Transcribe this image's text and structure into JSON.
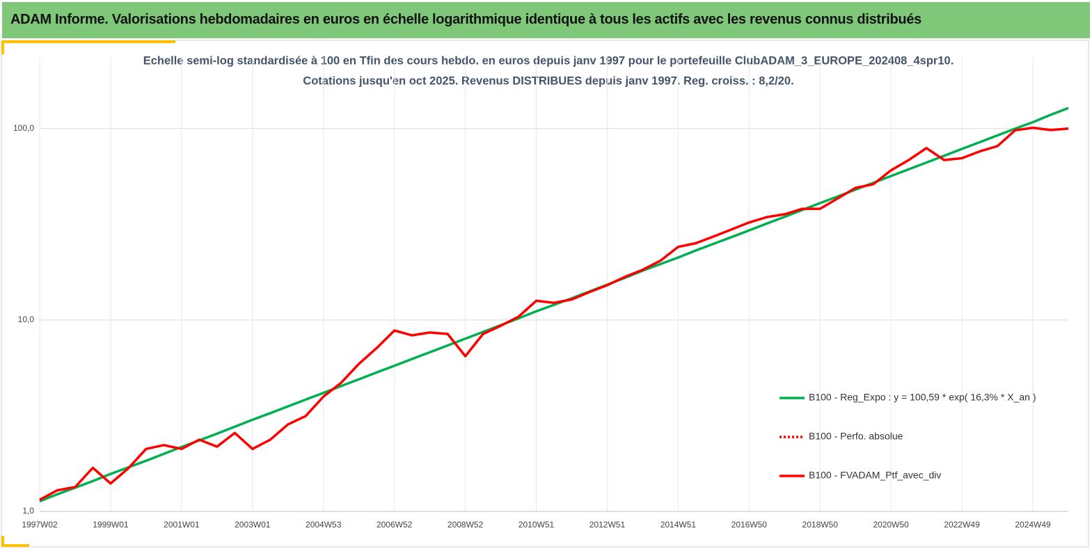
{
  "header": {
    "title": "ADAM Informe. Valorisations hebdomadaires en euros en échelle logarithmique identique à tous les actifs avec les revenus connus distribués"
  },
  "chart_data": {
    "type": "line",
    "title": "Echelle semi-log standardisée à 100 en Tfin des cours hebdo.  en euros depuis janv 1997 pour le portefeuille ClubADAM_3_EUROPE_202408_4spr10.",
    "subtitle": "Cotations  jusqu'en oct 2025. Revenus DISTRIBUES depuis janv 1997. Reg. croiss. : 8,2/20.",
    "log_scale": true,
    "grid": true,
    "legend": "lower right",
    "ylim": [
      1,
      200
    ],
    "yticks": [
      {
        "value": 1,
        "label": "1,0"
      },
      {
        "value": 10,
        "label": "10,0"
      },
      {
        "value": 100,
        "label": "100,0"
      }
    ],
    "categories": [
      "1997W02",
      null,
      null,
      null,
      "1999W01",
      null,
      null,
      null,
      "2001W01",
      null,
      null,
      null,
      "2003W01",
      null,
      null,
      null,
      "2004W53",
      null,
      null,
      null,
      "2006W52",
      null,
      null,
      null,
      "2008W52",
      null,
      null,
      null,
      "2010W51",
      null,
      null,
      null,
      "2012W51",
      null,
      null,
      null,
      "2014W51",
      null,
      null,
      null,
      "2016W50",
      null,
      null,
      null,
      "2018W50",
      null,
      null,
      null,
      "2020W50",
      null,
      null,
      null,
      "2022W49",
      null,
      null,
      null,
      "2024W49",
      null,
      null
    ],
    "series": [
      {
        "name": "B100 - Reg_Expo : y = 100,59 * exp( 16,3% *  X_an )",
        "color": "#00b050",
        "dash": "solid",
        "values": [
          1.13,
          1.23,
          1.33,
          1.44,
          1.57,
          1.7,
          1.84,
          2.0,
          2.17,
          2.35,
          2.55,
          2.77,
          3.01,
          3.26,
          3.54,
          3.84,
          4.16,
          4.52,
          4.9,
          5.32,
          5.77,
          6.26,
          6.79,
          7.36,
          7.99,
          8.67,
          9.4,
          10.2,
          11.1,
          12.0,
          13.0,
          14.1,
          15.3,
          16.6,
          18.1,
          19.6,
          21.2,
          23.1,
          25.0,
          27.1,
          29.4,
          31.9,
          34.6,
          37.6,
          40.8,
          44.2,
          48.0,
          52.1,
          56.5,
          61.3,
          66.5,
          72.1,
          78.3,
          84.9,
          92.1,
          99.9,
          108,
          118,
          128
        ]
      },
      {
        "name": "B100 - Perfo. absolue",
        "color": "#ff0000",
        "dash": "dotted",
        "values": [
          1.15,
          1.29,
          1.34,
          1.69,
          1.4,
          1.68,
          2.12,
          2.22,
          2.12,
          2.37,
          2.18,
          2.57,
          2.12,
          2.37,
          2.85,
          3.15,
          3.98,
          4.7,
          5.9,
          7.14,
          8.81,
          8.32,
          8.6,
          8.46,
          6.47,
          8.46,
          9.34,
          10.4,
          12.6,
          12.3,
          12.8,
          14.0,
          15.2,
          16.8,
          18.3,
          20.4,
          24.1,
          25.2,
          27.3,
          29.7,
          32.3,
          34.5,
          35.7,
          38.1,
          38.1,
          43.2,
          49.0,
          51.2,
          60.5,
          68.5,
          79.1,
          68.5,
          70.0,
          76.0,
          81.0,
          98,
          101,
          98.3,
          100
        ]
      },
      {
        "name": "B100 - FVADAM_Ptf_avec_div",
        "color": "#ff0000",
        "dash": "solid",
        "values": [
          1.15,
          1.29,
          1.34,
          1.69,
          1.4,
          1.68,
          2.12,
          2.22,
          2.12,
          2.37,
          2.18,
          2.57,
          2.12,
          2.37,
          2.85,
          3.15,
          3.98,
          4.7,
          5.9,
          7.14,
          8.81,
          8.32,
          8.6,
          8.46,
          6.47,
          8.46,
          9.34,
          10.4,
          12.6,
          12.3,
          12.8,
          14.0,
          15.2,
          16.8,
          18.3,
          20.4,
          24.1,
          25.2,
          27.3,
          29.7,
          32.3,
          34.5,
          35.7,
          38.1,
          38.1,
          43.2,
          49.0,
          51.2,
          60.5,
          68.5,
          79.1,
          68.5,
          70.0,
          76.0,
          81.0,
          98,
          101,
          98.3,
          100
        ]
      }
    ]
  }
}
